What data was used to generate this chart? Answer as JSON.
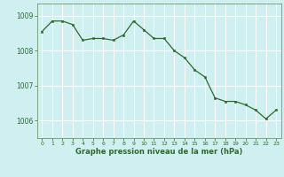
{
  "x": [
    0,
    1,
    2,
    3,
    4,
    5,
    6,
    7,
    8,
    9,
    10,
    11,
    12,
    13,
    14,
    15,
    16,
    17,
    18,
    19,
    20,
    21,
    22,
    23
  ],
  "y": [
    1008.55,
    1008.85,
    1008.85,
    1008.75,
    1008.3,
    1008.35,
    1008.35,
    1008.3,
    1008.45,
    1008.85,
    1008.6,
    1008.35,
    1008.35,
    1008.0,
    1007.8,
    1007.45,
    1007.25,
    1006.65,
    1006.55,
    1006.55,
    1006.45,
    1006.3,
    1006.05,
    1006.3
  ],
  "line_color": "#2d6a2d",
  "marker_color": "#2d6a2d",
  "bg_color": "#d0eff0",
  "grid_color": "#ffffff",
  "axis_color": "#5a8a5a",
  "tick_color": "#2d6a2d",
  "xlabel": "Graphe pression niveau de la mer (hPa)",
  "xlabel_color": "#2d6a2d",
  "yticks": [
    1006,
    1007,
    1008,
    1009
  ],
  "ylim": [
    1005.5,
    1009.35
  ],
  "xlim": [
    -0.5,
    23.5
  ]
}
